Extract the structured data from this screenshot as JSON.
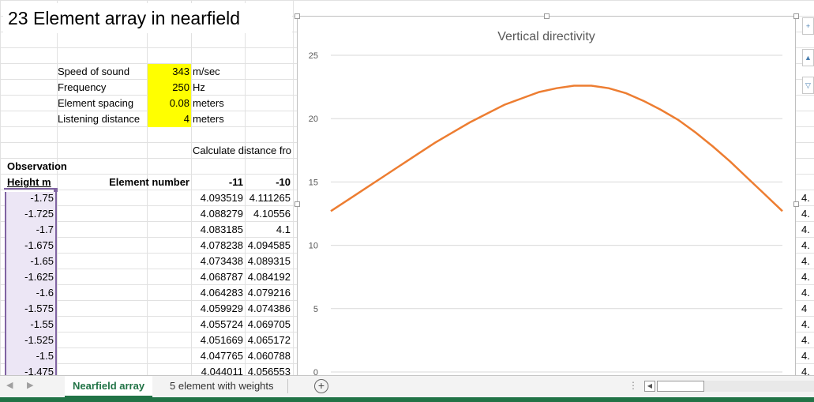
{
  "sheet": {
    "title": "23 Element array in nearfield",
    "params": [
      {
        "label": "Speed of sound",
        "value": "343",
        "unit": "m/sec"
      },
      {
        "label": "Frequency",
        "value": "250",
        "unit": "Hz"
      },
      {
        "label": "Element spacing",
        "value": "0.08",
        "unit": "meters"
      },
      {
        "label": "Listening distance",
        "value": "4",
        "unit": "meters"
      }
    ],
    "calc_label": "Calculate distance fro",
    "observation_label": "Observation",
    "height_header": "Height m",
    "element_number_header": "Element number",
    "col_headers": [
      "-11",
      "-10"
    ],
    "rows": [
      {
        "h": "-1.75",
        "a": "4.093519",
        "b": "4.111265"
      },
      {
        "h": "-1.725",
        "a": "4.088279",
        "b": "4.10556"
      },
      {
        "h": "-1.7",
        "a": "4.083185",
        "b": "4.1"
      },
      {
        "h": "-1.675",
        "a": "4.078238",
        "b": "4.094585"
      },
      {
        "h": "-1.65",
        "a": "4.073438",
        "b": "4.089315"
      },
      {
        "h": "-1.625",
        "a": "4.068787",
        "b": "4.084192"
      },
      {
        "h": "-1.6",
        "a": "4.064283",
        "b": "4.079216"
      },
      {
        "h": "-1.575",
        "a": "4.059929",
        "b": "4.074386"
      },
      {
        "h": "-1.55",
        "a": "4.055724",
        "b": "4.069705"
      },
      {
        "h": "-1.525",
        "a": "4.051669",
        "b": "4.065172"
      },
      {
        "h": "-1.5",
        "a": "4.047765",
        "b": "4.060788"
      },
      {
        "h": "-1.475",
        "a": "4.044011",
        "b": "4.056553"
      }
    ],
    "right_edge_values": [
      "4.",
      "4.",
      "4.",
      "4.",
      "4.",
      "4.",
      "4.",
      "4",
      "4.",
      "4.",
      "4.",
      "4."
    ]
  },
  "chart_data": {
    "type": "line",
    "title": "Vertical directivity",
    "xlabel": "",
    "ylabel": "",
    "ylim": [
      0,
      25
    ],
    "yticks": [
      "0",
      "5",
      "10",
      "15",
      "20",
      "25"
    ],
    "grid": true,
    "line_color": "#ed7d31",
    "series": [
      {
        "values": [
          12.7,
          13.6,
          14.5,
          15.4,
          16.3,
          17.2,
          18.1,
          18.9,
          19.7,
          20.4,
          21.1,
          21.6,
          22.1,
          22.4,
          22.6,
          22.6,
          22.4,
          22.0,
          21.4,
          20.7,
          19.9,
          18.9,
          17.8,
          16.6,
          15.3,
          14.0,
          12.7
        ]
      }
    ]
  },
  "tabs": {
    "items": [
      {
        "label": "Nearfield array",
        "active": true
      },
      {
        "label": "5 element with weights",
        "active": false
      }
    ],
    "add_symbol": "+"
  },
  "colors": {
    "accent": "#217346",
    "highlight": "#ffff00",
    "selection": "#8064a2"
  }
}
